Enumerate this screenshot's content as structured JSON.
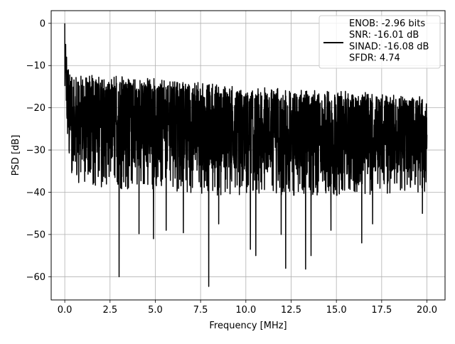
{
  "chart_data": {
    "type": "line",
    "title": "",
    "xlabel": "Frequency [MHz]",
    "ylabel": "PSD [dB]",
    "xlim": [
      -0.75,
      21.0
    ],
    "ylim": [
      -65.5,
      3.0
    ],
    "xticks": [
      0.0,
      2.5,
      5.0,
      7.5,
      10.0,
      12.5,
      15.0,
      17.5,
      20.0
    ],
    "xtick_labels": [
      "0.0",
      "2.5",
      "5.0",
      "7.5",
      "10.0",
      "12.5",
      "15.0",
      "17.5",
      "20.0"
    ],
    "yticks": [
      0,
      -10,
      -20,
      -30,
      -40,
      -50,
      -60
    ],
    "ytick_labels": [
      "0",
      "−10",
      "−20",
      "−30",
      "−40",
      "−50",
      "−60"
    ],
    "grid": true,
    "legend_position": "top-right",
    "legend_lines": [
      "ENOB: -2.96 bits",
      "SNR: -16.01 dB",
      "SINAD: -16.08 dB",
      "SFDR: 4.74"
    ],
    "line_color": "#000000",
    "series": [
      {
        "x_range": [
          0.0,
          20.0
        ],
        "peaks": [
          {
            "x": 0.0,
            "y": 0.0
          },
          {
            "x": 0.05,
            "y": -5.0
          },
          {
            "x": 0.1,
            "y": -8.0
          },
          {
            "x": 0.2,
            "y": -11.0
          }
        ],
        "dips": [
          {
            "x": 3.0,
            "y": -60.0
          },
          {
            "x": 7.95,
            "y": -62.3
          },
          {
            "x": 13.3,
            "y": -58.2
          },
          {
            "x": 12.2,
            "y": -58.0
          },
          {
            "x": 10.55,
            "y": -55.0
          },
          {
            "x": 10.25,
            "y": -53.5
          },
          {
            "x": 11.95,
            "y": -50.0
          },
          {
            "x": 13.6,
            "y": -55.0
          },
          {
            "x": 16.4,
            "y": -52.0
          },
          {
            "x": 17.0,
            "y": -47.5
          },
          {
            "x": 4.1,
            "y": -49.8
          },
          {
            "x": 4.9,
            "y": -51.0
          },
          {
            "x": 6.55,
            "y": -49.6
          },
          {
            "x": 5.6,
            "y": -49.0
          },
          {
            "x": 8.5,
            "y": -47.5
          },
          {
            "x": 19.75,
            "y": -45.0
          },
          {
            "x": 14.7,
            "y": -49.0
          }
        ],
        "upper_envelope": [
          [
            0.3,
            -12.0
          ],
          [
            5.0,
            -13.0
          ],
          [
            10.0,
            -15.0
          ],
          [
            15.0,
            -16.0
          ],
          [
            20.0,
            -17.0
          ]
        ],
        "lower_envelope": [
          [
            0.3,
            -38.0
          ],
          [
            5.0,
            -40.0
          ],
          [
            10.0,
            -41.0
          ],
          [
            15.0,
            -41.0
          ],
          [
            20.0,
            -40.0
          ]
        ]
      }
    ]
  }
}
